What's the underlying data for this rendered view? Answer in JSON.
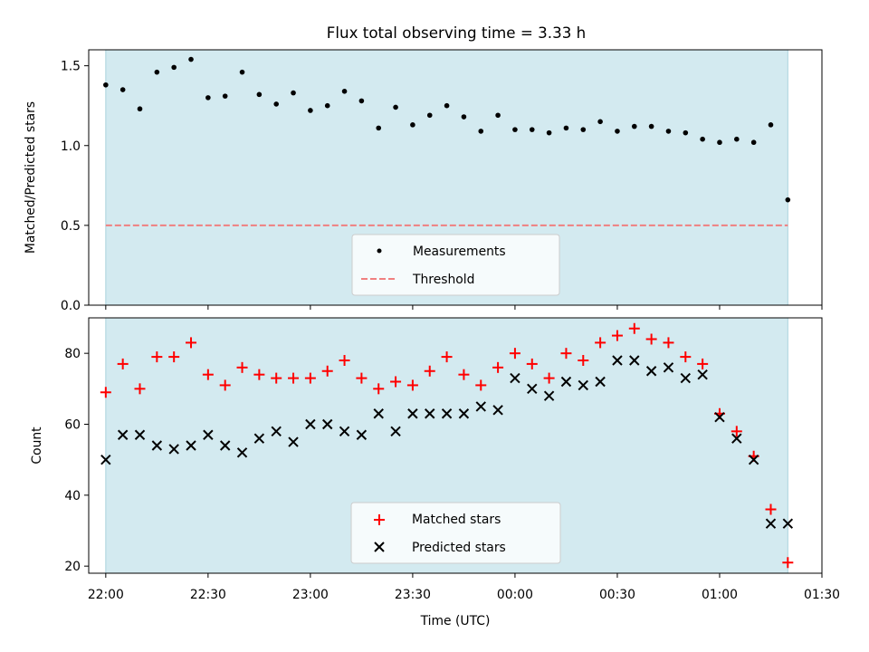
{
  "title": "Flux total observing time = 3.33 h",
  "colors": {
    "band": "#d3eaf0",
    "band_edge": "#a9d2dd",
    "threshold": "#f08080",
    "matched": "#ff0000",
    "predicted": "#000000",
    "measurement": "#000000"
  },
  "chart_data": [
    {
      "type": "scatter",
      "ylabel": "Matched/Predicted stars",
      "ylim": [
        0,
        1.6
      ],
      "xlim": [
        "21:55",
        "01:30"
      ],
      "yticks": [
        0.0,
        0.5,
        1.0,
        1.5
      ],
      "ytick_labels": [
        "0.0",
        "0.5",
        "1.0",
        "1.5"
      ],
      "observing_window": [
        "22:00",
        "01:20"
      ],
      "threshold": 0.5,
      "legend_placement": "lower-center",
      "legend": [
        {
          "label": "Measurements",
          "marker": "dot"
        },
        {
          "label": "Threshold",
          "marker": "dashed-line"
        }
      ],
      "series": [
        {
          "name": "Measurements",
          "x": [
            "22:00",
            "22:05",
            "22:10",
            "22:15",
            "22:20",
            "22:25",
            "22:30",
            "22:35",
            "22:40",
            "22:45",
            "22:50",
            "22:55",
            "23:00",
            "23:05",
            "23:10",
            "23:15",
            "23:20",
            "23:25",
            "23:30",
            "23:35",
            "23:40",
            "23:45",
            "23:50",
            "23:55",
            "00:00",
            "00:05",
            "00:10",
            "00:15",
            "00:20",
            "00:25",
            "00:30",
            "00:35",
            "00:40",
            "00:45",
            "00:50",
            "00:55",
            "01:00",
            "01:05",
            "01:10",
            "01:15",
            "01:20"
          ],
          "y": [
            1.38,
            1.35,
            1.23,
            1.46,
            1.49,
            1.54,
            1.3,
            1.31,
            1.46,
            1.32,
            1.26,
            1.33,
            1.22,
            1.25,
            1.34,
            1.28,
            1.11,
            1.24,
            1.13,
            1.19,
            1.25,
            1.18,
            1.09,
            1.19,
            1.1,
            1.1,
            1.08,
            1.11,
            1.1,
            1.15,
            1.09,
            1.12,
            1.12,
            1.09,
            1.08,
            1.04,
            1.02,
            1.04,
            1.02,
            1.13,
            0.66
          ]
        }
      ]
    },
    {
      "type": "scatter",
      "xlabel": "Time (UTC)",
      "ylabel": "Count",
      "ylim": [
        18,
        90
      ],
      "xlim": [
        "21:55",
        "01:30"
      ],
      "yticks": [
        20,
        40,
        60,
        80
      ],
      "ytick_labels": [
        "20",
        "40",
        "60",
        "80"
      ],
      "xticks": [
        "22:00",
        "22:30",
        "23:00",
        "23:30",
        "00:00",
        "00:30",
        "01:00",
        "01:30"
      ],
      "observing_window": [
        "22:00",
        "01:20"
      ],
      "legend_placement": "lower-center",
      "legend": [
        {
          "label": "Matched stars",
          "marker": "plus"
        },
        {
          "label": "Predicted stars",
          "marker": "x"
        }
      ],
      "series": [
        {
          "name": "Matched stars",
          "x": [
            "22:00",
            "22:05",
            "22:10",
            "22:15",
            "22:20",
            "22:25",
            "22:30",
            "22:35",
            "22:40",
            "22:45",
            "22:50",
            "22:55",
            "23:00",
            "23:05",
            "23:10",
            "23:15",
            "23:20",
            "23:25",
            "23:30",
            "23:35",
            "23:40",
            "23:45",
            "23:50",
            "23:55",
            "00:00",
            "00:05",
            "00:10",
            "00:15",
            "00:20",
            "00:25",
            "00:30",
            "00:35",
            "00:40",
            "00:45",
            "00:50",
            "00:55",
            "01:00",
            "01:05",
            "01:10",
            "01:15",
            "01:20"
          ],
          "y": [
            69,
            77,
            70,
            79,
            79,
            83,
            74,
            71,
            76,
            74,
            73,
            73,
            73,
            75,
            78,
            73,
            70,
            72,
            71,
            75,
            79,
            74,
            71,
            76,
            80,
            77,
            73,
            80,
            78,
            83,
            85,
            87,
            84,
            83,
            79,
            77,
            63,
            58,
            51,
            36,
            21
          ]
        },
        {
          "name": "Predicted stars",
          "x": [
            "22:00",
            "22:05",
            "22:10",
            "22:15",
            "22:20",
            "22:25",
            "22:30",
            "22:35",
            "22:40",
            "22:45",
            "22:50",
            "22:55",
            "23:00",
            "23:05",
            "23:10",
            "23:15",
            "23:20",
            "23:25",
            "23:30",
            "23:35",
            "23:40",
            "23:45",
            "23:50",
            "23:55",
            "00:00",
            "00:05",
            "00:10",
            "00:15",
            "00:20",
            "00:25",
            "00:30",
            "00:35",
            "00:40",
            "00:45",
            "00:50",
            "00:55",
            "01:00",
            "01:05",
            "01:10",
            "01:15",
            "01:20"
          ],
          "y": [
            50,
            57,
            57,
            54,
            53,
            54,
            57,
            54,
            52,
            56,
            58,
            55,
            60,
            60,
            58,
            57,
            63,
            58,
            63,
            63,
            63,
            63,
            65,
            64,
            73,
            70,
            68,
            72,
            71,
            72,
            78,
            78,
            75,
            76,
            73,
            74,
            62,
            56,
            50,
            32,
            32
          ]
        }
      ]
    }
  ]
}
